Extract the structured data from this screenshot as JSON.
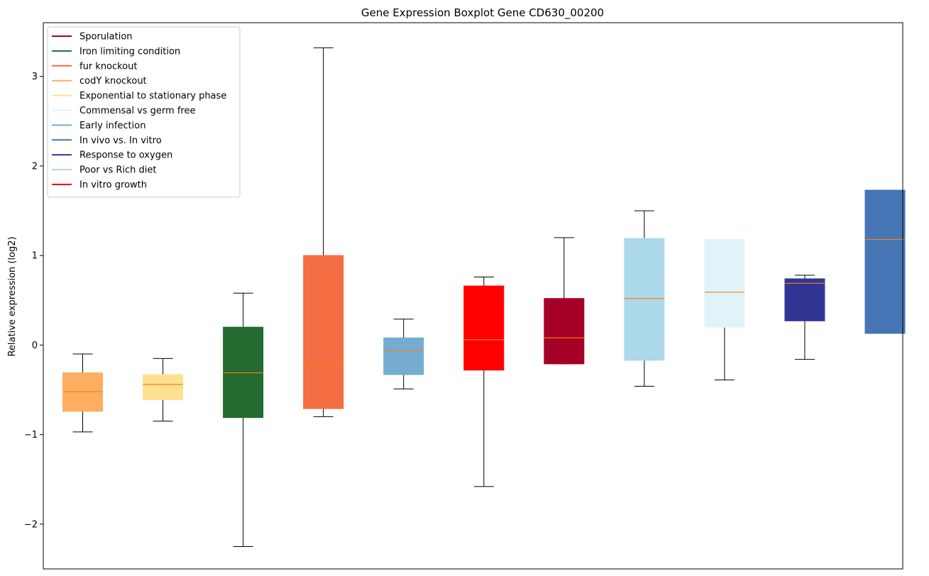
{
  "chart_data": {
    "type": "boxplot",
    "title": "Gene Expression Boxplot Gene CD630_00200",
    "xlabel": "",
    "ylabel": "Relative expression (log2)",
    "ylim": [
      -2.5,
      3.6
    ],
    "yticks": [
      {
        "value": 3,
        "label": "3"
      },
      {
        "value": 2,
        "label": "2"
      },
      {
        "value": 1,
        "label": "1"
      },
      {
        "value": 0,
        "label": "0"
      },
      {
        "value": -1,
        "label": "−1"
      },
      {
        "value": -2,
        "label": "−2"
      }
    ],
    "grid": false,
    "legend_position": "top-left",
    "legend": [
      {
        "label": "Sporulation",
        "color": "#a50026"
      },
      {
        "label": "Iron limiting condition",
        "color": "#236b2e"
      },
      {
        "label": "fur knockout",
        "color": "#f46d43"
      },
      {
        "label": "codY knockout",
        "color": "#fdae61"
      },
      {
        "label": "Exponential to stationary phase",
        "color": "#fee090"
      },
      {
        "label": "Commensal vs germ free",
        "color": "#e0f3f8"
      },
      {
        "label": "Early infection",
        "color": "#74add1"
      },
      {
        "label": "In vivo vs. In vitro",
        "color": "#4575b4"
      },
      {
        "label": "Response to oxygen",
        "color": "#313695"
      },
      {
        "label": "Poor vs Rich diet",
        "color": "#abd9e9"
      },
      {
        "label": "In vitro growth",
        "color": "#ff0000"
      }
    ],
    "median_color": "#ff7f0e",
    "boxes": [
      {
        "condition": "codY knockout",
        "color": "#fdae61",
        "whislo": -0.97,
        "q1": -0.74,
        "med": -0.52,
        "q3": -0.31,
        "whishi": -0.1
      },
      {
        "condition": "Exponential to stationary phase",
        "color": "#fee090",
        "whislo": -0.85,
        "q1": -0.61,
        "med": -0.44,
        "q3": -0.33,
        "whishi": -0.15
      },
      {
        "condition": "Iron limiting condition",
        "color": "#236b2e",
        "whislo": -2.25,
        "q1": -0.81,
        "med": -0.31,
        "q3": 0.2,
        "whishi": 0.58
      },
      {
        "condition": "fur knockout",
        "color": "#f46d43",
        "whislo": -0.8,
        "q1": -0.71,
        "med": -0.23,
        "q3": 1.0,
        "whishi": 3.32
      },
      {
        "condition": "Early infection",
        "color": "#74add1",
        "whislo": -0.49,
        "q1": -0.33,
        "med": -0.07,
        "q3": 0.08,
        "whishi": 0.29
      },
      {
        "condition": "In vitro growth",
        "color": "#ff0000",
        "whislo": -1.58,
        "q1": -0.28,
        "med": 0.06,
        "q3": 0.66,
        "whishi": 0.76
      },
      {
        "condition": "Sporulation",
        "color": "#a50026",
        "whislo": -0.21,
        "q1": -0.21,
        "med": 0.08,
        "q3": 0.52,
        "whishi": 1.2
      },
      {
        "condition": "Poor vs Rich diet",
        "color": "#abd9e9",
        "whislo": -0.46,
        "q1": -0.17,
        "med": 0.52,
        "q3": 1.19,
        "whishi": 1.5
      },
      {
        "condition": "Commensal vs germ free",
        "color": "#e0f3f8",
        "whislo": -0.39,
        "q1": 0.2,
        "med": 0.59,
        "q3": 1.18,
        "whishi": 1.18
      },
      {
        "condition": "Response to oxygen",
        "color": "#313695",
        "whislo": -0.16,
        "q1": 0.27,
        "med": 0.69,
        "q3": 0.74,
        "whishi": 0.78
      },
      {
        "condition": "In vivo vs. In vitro",
        "color": "#4575b4",
        "whislo": 0.13,
        "q1": 0.13,
        "med": 1.18,
        "q3": 1.73,
        "whishi": 1.73
      }
    ]
  }
}
